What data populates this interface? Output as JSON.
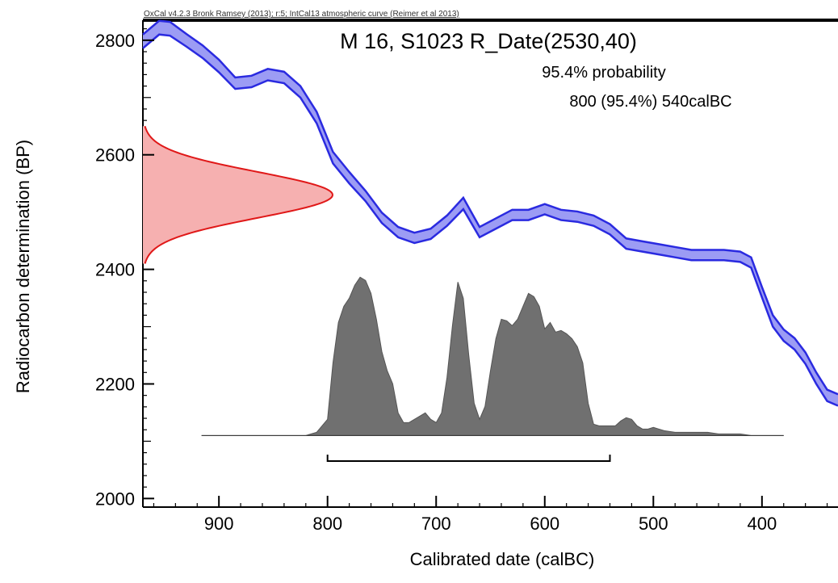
{
  "header_text": "OxCal v4.2.3 Bronk Ramsey (2013); r:5; IntCal13 atmospheric curve (Reimer et al 2013)",
  "chart_data": {
    "type": "area",
    "title": "M 16, S1023 R_Date(2530,40)",
    "probability_label": "95.4% probability",
    "range_label": "800 (95.4%) 540calBC",
    "xlabel": "Calibrated date (calBC)",
    "ylabel": "Radiocarbon determination (BP)",
    "xlim": [
      970,
      330
    ],
    "ylim": [
      1985,
      2835
    ],
    "x_ticks": [
      900,
      800,
      700,
      600,
      500,
      400
    ],
    "y_ticks": [
      2000,
      2200,
      2400,
      2600,
      2800
    ],
    "grid": false,
    "colors": {
      "calibration_curve": "#2a2ae0",
      "calibration_fill": "#9c9cf4",
      "radiocarbon_curve": "#e01818",
      "radiocarbon_fill": "#f6b0b0",
      "posterior_fill": "#707070"
    },
    "calibration_curve": {
      "name": "IntCal13",
      "x": [
        970,
        955,
        945,
        930,
        915,
        900,
        885,
        870,
        855,
        840,
        825,
        810,
        795,
        780,
        765,
        750,
        735,
        720,
        705,
        690,
        675,
        660,
        645,
        630,
        615,
        600,
        585,
        570,
        555,
        540,
        525,
        510,
        495,
        480,
        465,
        450,
        435,
        420,
        410,
        400,
        390,
        380,
        370,
        360,
        350,
        340,
        330
      ],
      "center": [
        2798,
        2822,
        2820,
        2800,
        2780,
        2755,
        2725,
        2728,
        2740,
        2735,
        2710,
        2665,
        2595,
        2560,
        2528,
        2490,
        2465,
        2455,
        2462,
        2485,
        2515,
        2465,
        2480,
        2495,
        2495,
        2505,
        2495,
        2492,
        2485,
        2470,
        2445,
        2440,
        2435,
        2430,
        2425,
        2425,
        2425,
        2422,
        2412,
        2360,
        2310,
        2285,
        2270,
        2245,
        2210,
        2180,
        2172
      ],
      "halfwidth": [
        12,
        12,
        12,
        11,
        11,
        11,
        10,
        10,
        10,
        10,
        10,
        10,
        10,
        10,
        9,
        9,
        9,
        9,
        9,
        9,
        10,
        9,
        9,
        9,
        9,
        9,
        9,
        9,
        9,
        9,
        9,
        9,
        9,
        9,
        9,
        9,
        9,
        9,
        9,
        9,
        10,
        10,
        10,
        10,
        10,
        10,
        10
      ]
    },
    "radiocarbon_determination": {
      "bp_mean": 2530,
      "bp_error": 40
    },
    "calibrated_distribution": {
      "baseline_bp": 2110,
      "x": [
        916,
        820,
        810,
        800,
        795,
        790,
        785,
        780,
        775,
        770,
        765,
        760,
        755,
        750,
        745,
        740,
        735,
        730,
        725,
        720,
        715,
        710,
        705,
        700,
        695,
        690,
        685,
        680,
        675,
        670,
        665,
        660,
        655,
        650,
        645,
        640,
        635,
        630,
        625,
        620,
        615,
        610,
        605,
        600,
        595,
        590,
        585,
        580,
        575,
        570,
        565,
        560,
        555,
        550,
        545,
        540,
        535,
        530,
        525,
        520,
        515,
        510,
        505,
        500,
        495,
        490,
        480,
        470,
        460,
        450,
        440,
        430,
        420,
        410,
        380
      ],
      "relative_density": [
        0,
        0,
        0.02,
        0.1,
        0.45,
        0.7,
        0.8,
        0.85,
        0.93,
        0.98,
        0.96,
        0.88,
        0.72,
        0.52,
        0.4,
        0.32,
        0.14,
        0.08,
        0.08,
        0.1,
        0.12,
        0.14,
        0.1,
        0.08,
        0.14,
        0.36,
        0.68,
        0.95,
        0.85,
        0.5,
        0.2,
        0.1,
        0.18,
        0.4,
        0.6,
        0.72,
        0.71,
        0.68,
        0.72,
        0.8,
        0.88,
        0.86,
        0.8,
        0.66,
        0.7,
        0.64,
        0.65,
        0.63,
        0.6,
        0.55,
        0.45,
        0.2,
        0.07,
        0.06,
        0.06,
        0.06,
        0.06,
        0.09,
        0.11,
        0.1,
        0.06,
        0.04,
        0.04,
        0.05,
        0.04,
        0.03,
        0.02,
        0.02,
        0.02,
        0.02,
        0.01,
        0.01,
        0.01,
        0,
        0
      ]
    },
    "range_bracket": {
      "from_calbc": 800,
      "to_calbc": 540
    }
  }
}
